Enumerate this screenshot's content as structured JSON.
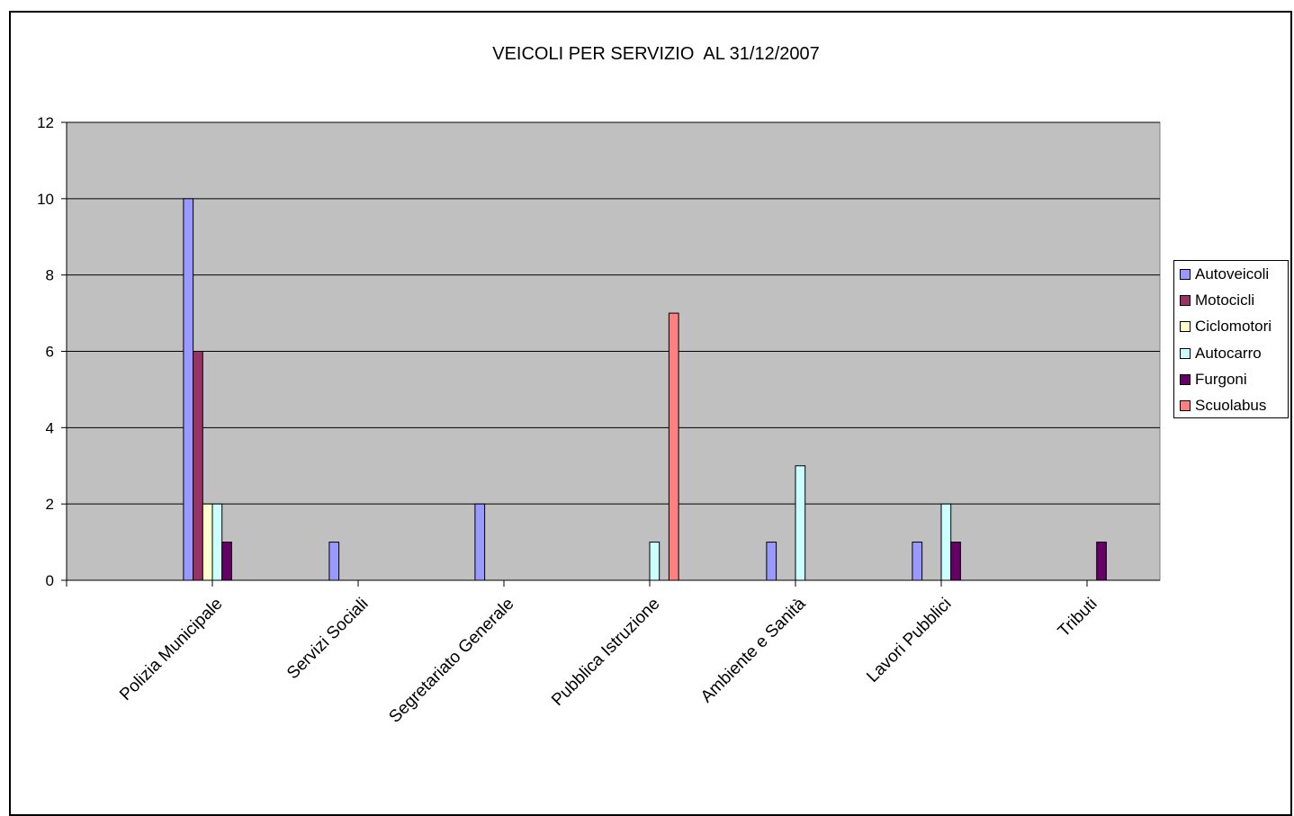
{
  "chart_data": {
    "type": "bar",
    "title": "VEICOLI PER SERVIZIO  AL 31/12/2007",
    "categories": [
      "Polizia Municipale",
      "Servizi Sociali",
      "Segretariato Generale",
      "Pubblica Istruzione",
      "Ambiente e Sanità",
      "Lavori Pubblici",
      "Tributi"
    ],
    "series": [
      {
        "name": "Autoveicoli",
        "color": "#9999FF",
        "values": [
          10,
          1,
          2,
          0,
          1,
          1,
          0
        ]
      },
      {
        "name": "Motocicli",
        "color": "#993366",
        "values": [
          6,
          0,
          0,
          0,
          0,
          0,
          0
        ]
      },
      {
        "name": "Ciclomotori",
        "color": "#FFFFCC",
        "values": [
          2,
          0,
          0,
          0,
          0,
          0,
          0
        ]
      },
      {
        "name": "Autocarro",
        "color": "#CCFFFF",
        "values": [
          2,
          0,
          0,
          1,
          3,
          2,
          0
        ]
      },
      {
        "name": "Furgoni",
        "color": "#660066",
        "values": [
          1,
          0,
          0,
          0,
          0,
          1,
          1
        ]
      },
      {
        "name": "Scuolabus",
        "color": "#FF8080",
        "values": [
          0,
          0,
          0,
          7,
          0,
          0,
          0
        ]
      }
    ],
    "ylim": [
      0,
      12
    ],
    "yticks": [
      0,
      2,
      4,
      6,
      8,
      10,
      12
    ],
    "grid": true,
    "legend_position": "right",
    "plot_background": "#C0C0C0"
  }
}
